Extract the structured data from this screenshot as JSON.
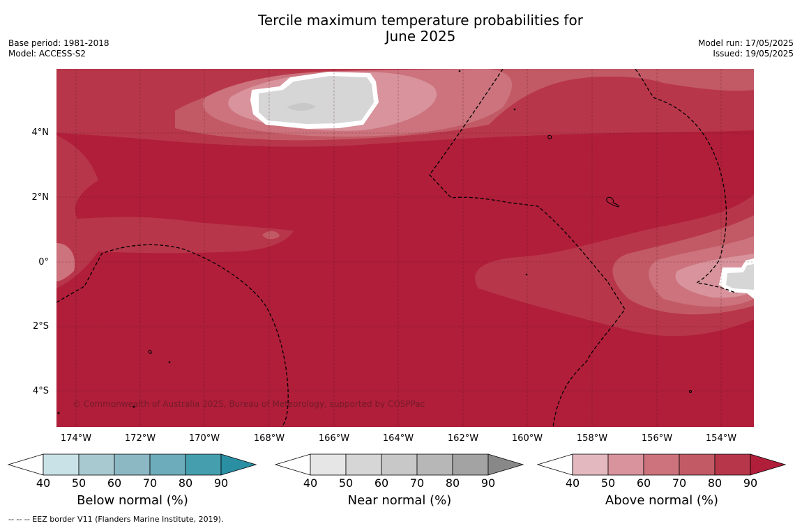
{
  "title_line1": "Tercile maximum temperature probabilities for",
  "title_line2": "June 2025",
  "base_period": "Base period: 1981-2018",
  "model": "Model: ACCESS-S2",
  "model_run": "Model run: 17/05/2025",
  "issued": "Issued: 19/05/2025",
  "copyright": "© Commonwealth of Australia 2025, Bureau of Meteorology, supported by COSPPac",
  "footnote": "--  --  -- EEZ border V11 (Flanders Marine Institute, 2019).",
  "axes": {
    "lat_labels": [
      "4°N",
      "2°N",
      "0°",
      "2°S",
      "4°S"
    ],
    "lon_labels": [
      "174°W",
      "172°W",
      "170°W",
      "168°W",
      "166°W",
      "164°W",
      "162°W",
      "160°W",
      "158°W",
      "156°W",
      "154°W"
    ]
  },
  "legends": [
    {
      "title": "Below normal (%)",
      "ticks": [
        "40",
        "50",
        "60",
        "70",
        "80",
        "90"
      ],
      "colors": [
        "#ffffff",
        "#c9e2e8",
        "#a8c9cf",
        "#8cb8c4",
        "#6cacbb",
        "#459ead",
        "#2a8fa3"
      ]
    },
    {
      "title": "Near normal (%)",
      "ticks": [
        "40",
        "50",
        "60",
        "70",
        "80",
        "90"
      ],
      "colors": [
        "#ffffff",
        "#e6e6e6",
        "#d6d6d6",
        "#c8c8c8",
        "#b7b7b7",
        "#a3a3a3",
        "#888888"
      ]
    },
    {
      "title": "Above normal (%)",
      "ticks": [
        "40",
        "50",
        "60",
        "70",
        "80",
        "90"
      ],
      "colors": [
        "#ffffff",
        "#e3b8bf",
        "#d8939c",
        "#cc737d",
        "#c25a65",
        "#b8364a",
        "#b01e3a"
      ]
    }
  ],
  "map_colors": {
    "above_90": "#b01e3a",
    "above_80": "#b8364a",
    "above_70": "#c25a65",
    "above_60": "#cc737d",
    "above_50": "#d8939c",
    "near_50": "#d6d6d6",
    "near_60": "#c8c8c8"
  }
}
